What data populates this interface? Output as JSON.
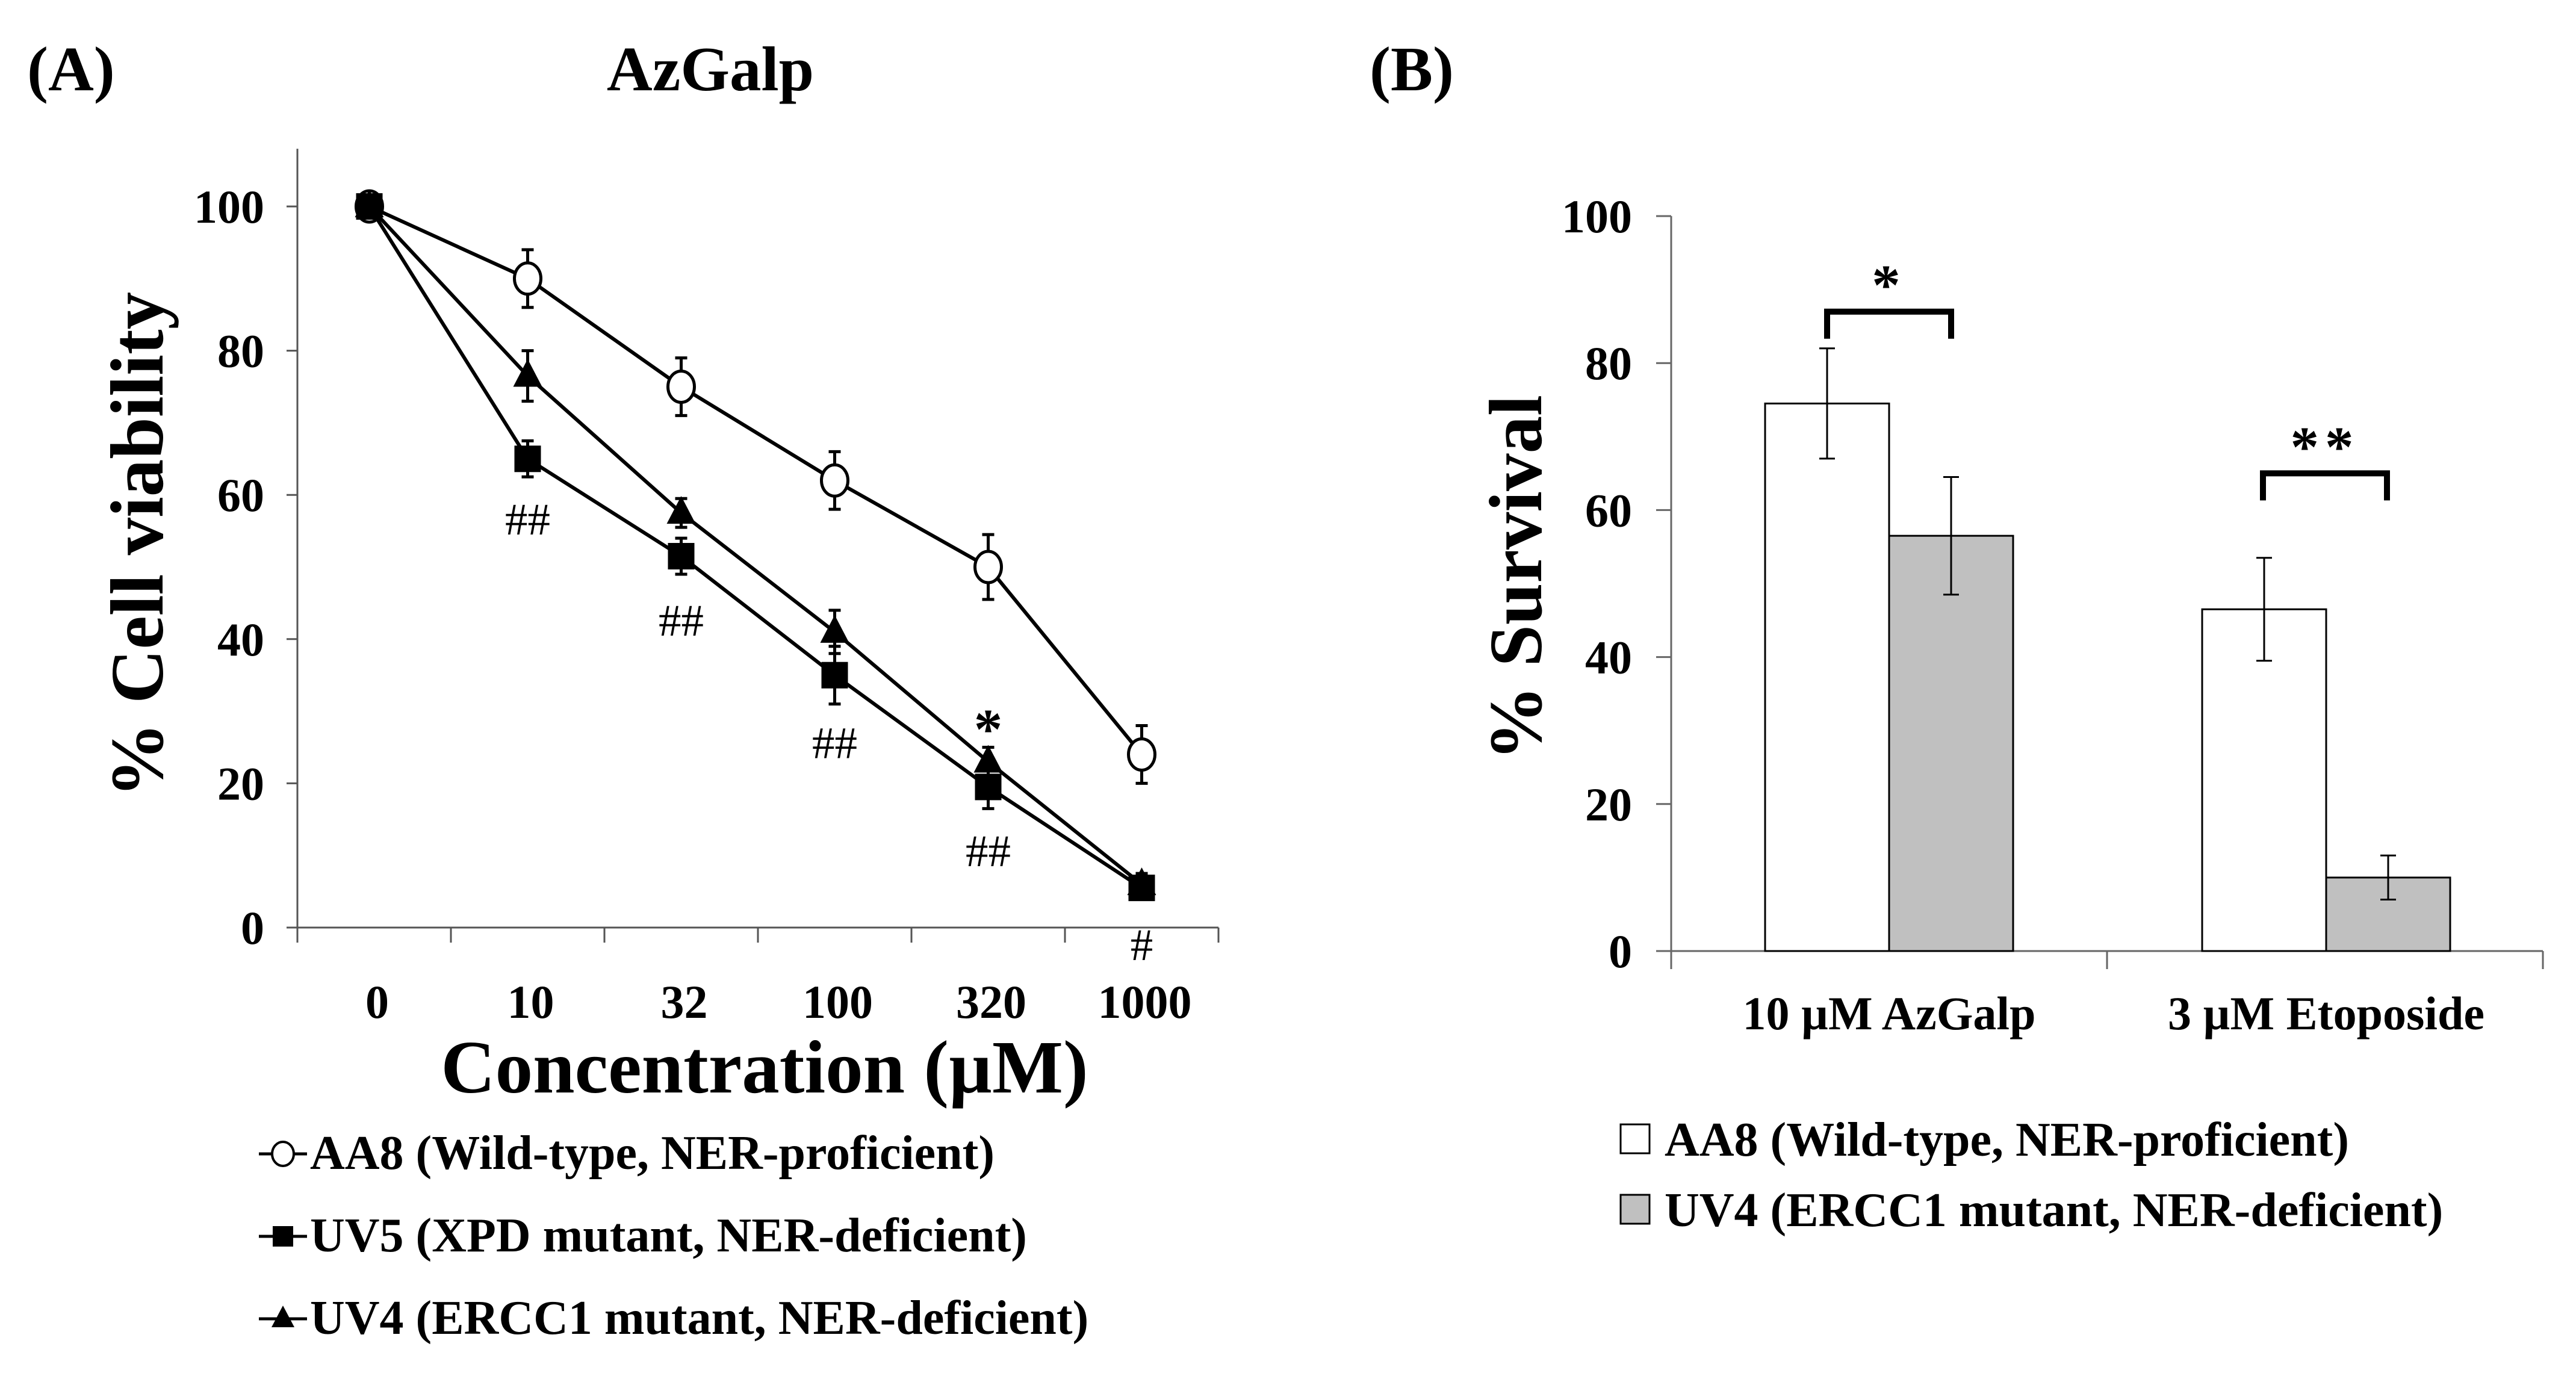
{
  "chart_data": [
    {
      "panel_label": "(A)",
      "type": "line",
      "title": "AzGalp",
      "xlabel": "Concentration (µM)",
      "ylabel": "% Cell viability",
      "categories": [
        "0",
        "10",
        "32",
        "100",
        "320",
        "1000"
      ],
      "ylim": [
        0,
        100
      ],
      "yticks": [
        "0",
        "20",
        "40",
        "60",
        "80",
        "100"
      ],
      "grid": false,
      "legend_position": "bottom",
      "series": [
        {
          "name": "AA8 (Wild-type, NER-proficient)",
          "marker": "open-circle",
          "values": [
            100,
            90,
            75,
            62,
            50,
            24
          ],
          "errors": [
            0,
            4,
            4,
            4,
            4.5,
            4
          ]
        },
        {
          "name": "UV5 (XPD mutant, NER-deficient)",
          "marker": "filled-square",
          "values": [
            100,
            65,
            51.5,
            35,
            19.5,
            5.5
          ],
          "errors": [
            0,
            2.5,
            2.5,
            4,
            3,
            1.5
          ]
        },
        {
          "name": "UV4 (ERCC1 mutant, NER-deficient)",
          "marker": "filled-triangle",
          "values": [
            100,
            76.5,
            57.5,
            41,
            23,
            6
          ],
          "errors": [
            0,
            3.5,
            2,
            3,
            2,
            1.5
          ]
        }
      ],
      "annotations": [
        {
          "text": "##",
          "category": "10",
          "value": 57
        },
        {
          "text": "##",
          "category": "32",
          "value": 43
        },
        {
          "text": "##",
          "category": "100",
          "value": 26
        },
        {
          "text": "##",
          "category": "320",
          "value": 11
        },
        {
          "text": "#",
          "category": "1000",
          "value": -2
        },
        {
          "text": "*",
          "category": "320",
          "value": 29
        }
      ]
    },
    {
      "panel_label": "(B)",
      "type": "bar",
      "title": "",
      "xlabel": "",
      "ylabel": "% Survival",
      "categories": [
        "10 µM AzGalp",
        "3 µM Etoposide"
      ],
      "ylim": [
        0,
        100
      ],
      "yticks": [
        "0",
        "20",
        "40",
        "60",
        "80",
        "100"
      ],
      "grid": false,
      "legend_position": "bottom",
      "series": [
        {
          "name": "AA8 (Wild-type, NER-proficient)",
          "color": "#ffffff",
          "values": [
            74.5,
            46.5
          ],
          "errors": [
            7.5,
            7
          ]
        },
        {
          "name": "UV4 (ERCC1 mutant, NER-deficient)",
          "color": "#c0c0c0",
          "values": [
            56.5,
            10
          ],
          "errors": [
            8,
            3
          ]
        }
      ],
      "significance": [
        {
          "text": "*",
          "category": "10 µM AzGalp",
          "bracket_value": 87
        },
        {
          "text": "**",
          "category": "3 µM Etoposide",
          "bracket_value": 65
        }
      ]
    }
  ]
}
